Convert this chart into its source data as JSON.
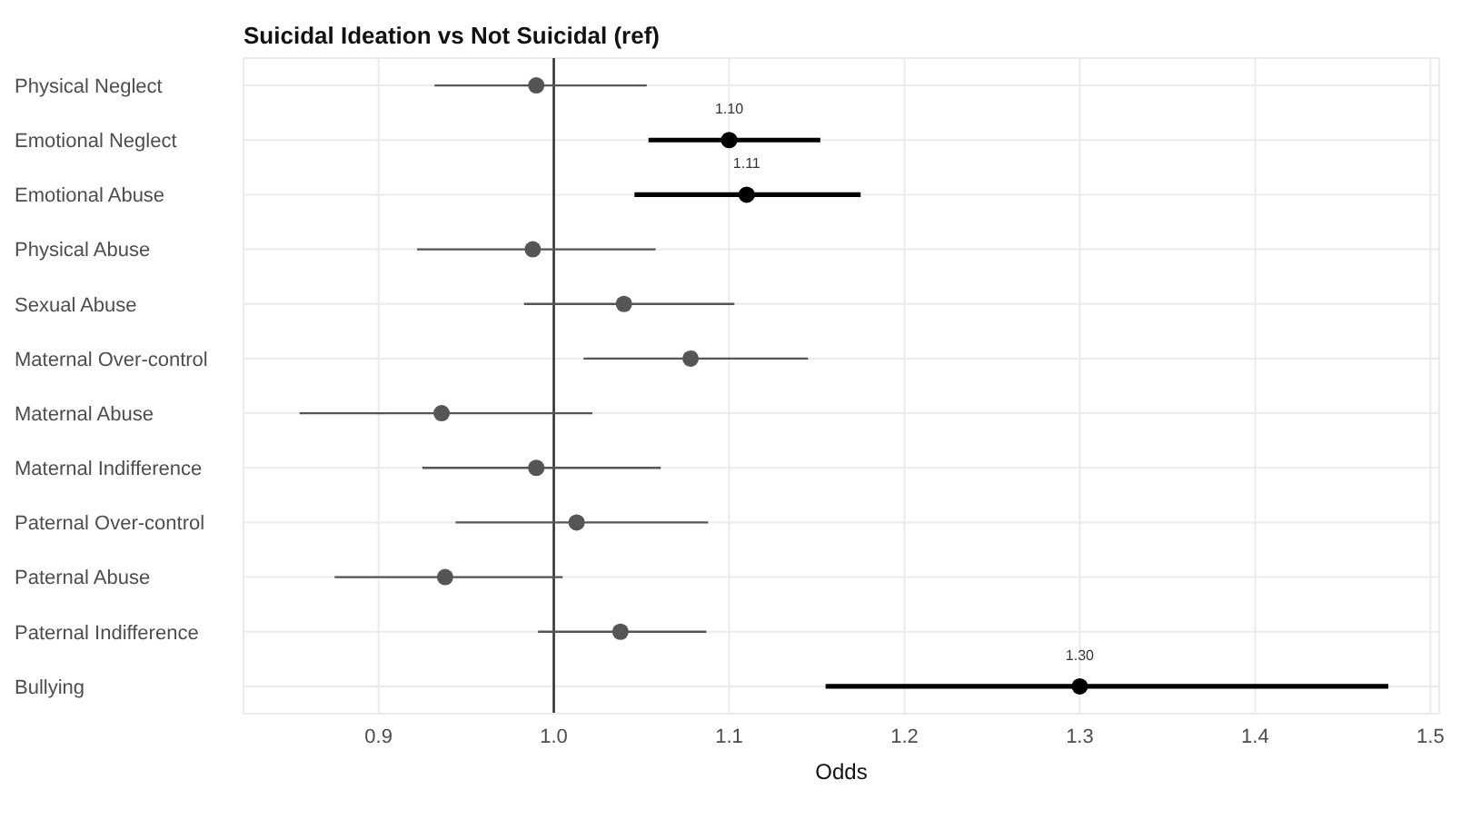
{
  "chart_data": {
    "type": "scatter",
    "title": "Suicidal Ideation vs Not Suicidal (ref)",
    "xlabel": "Odds",
    "orientation": "horizontal",
    "categories": [
      "Physical Neglect",
      "Emotional Neglect",
      "Emotional Abuse",
      "Physical Abuse",
      "Sexual Abuse",
      "Maternal Over-control",
      "Maternal Abuse",
      "Maternal Indifference",
      "Paternal Over-control",
      "Paternal Abuse",
      "Paternal Indifference",
      "Bullying"
    ],
    "values": [
      0.99,
      1.1,
      1.11,
      0.988,
      1.04,
      1.078,
      0.936,
      0.99,
      1.013,
      0.938,
      1.038,
      1.3
    ],
    "errors": [
      [
        0.932,
        1.053
      ],
      [
        1.054,
        1.152
      ],
      [
        1.046,
        1.175
      ],
      [
        0.922,
        1.058
      ],
      [
        0.983,
        1.103
      ],
      [
        1.017,
        1.145
      ],
      [
        0.855,
        1.022
      ],
      [
        0.925,
        1.061
      ],
      [
        0.944,
        1.088
      ],
      [
        0.875,
        1.005
      ],
      [
        0.991,
        1.087
      ],
      [
        1.155,
        1.476
      ]
    ],
    "colors": [
      "#555555",
      "#000000",
      "#000000",
      "#555555",
      "#555555",
      "#555555",
      "#555555",
      "#555555",
      "#555555",
      "#555555",
      "#555555",
      "#000000"
    ],
    "value_labels": [
      null,
      "1.10",
      "1.11",
      null,
      null,
      null,
      null,
      null,
      null,
      null,
      null,
      "1.30"
    ],
    "xlim": [
      0.823,
      1.505
    ],
    "xticks": [
      {
        "value": 0.9,
        "label": "0.9"
      },
      {
        "value": 1.0,
        "label": "1.0"
      },
      {
        "value": 1.1,
        "label": "1.1"
      },
      {
        "value": 1.2,
        "label": "1.2"
      },
      {
        "value": 1.3,
        "label": "1.3"
      },
      {
        "value": 1.4,
        "label": "1.4"
      },
      {
        "value": 1.5,
        "label": "1.5"
      }
    ],
    "ref_lines": [
      {
        "axis": "x",
        "value": 1.0,
        "color": "#333333"
      }
    ],
    "grid": true,
    "marker": "circle"
  }
}
